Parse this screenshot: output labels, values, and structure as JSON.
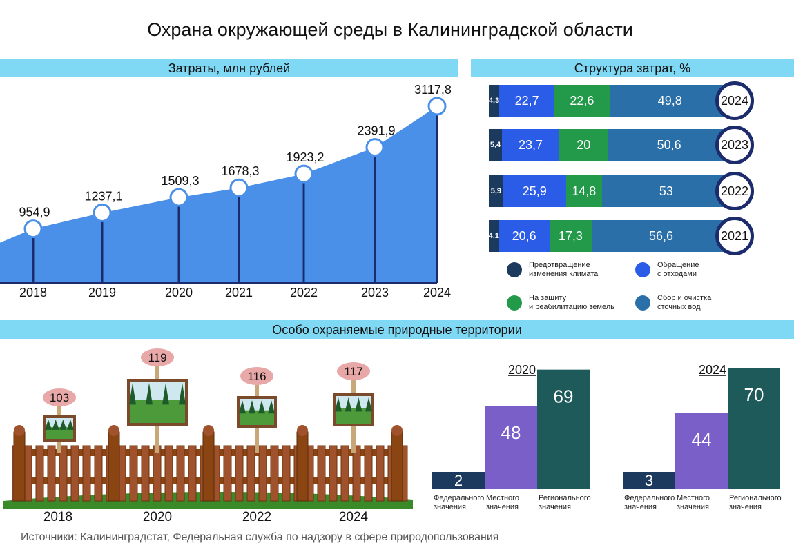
{
  "title": "Охрана окружающей среды в Калининградской области",
  "sections": {
    "costs": "Затраты, млн рублей",
    "structure": "Структура затрат, %",
    "oopt": "Особо охраняемые природные территории"
  },
  "source": "Источники: Калининградстат, Федеральная служба по надзору в сфере природопользования",
  "chart_data": [
    {
      "type": "area",
      "title": "Затраты, млн рублей",
      "x": [
        "2018",
        "2019",
        "2020",
        "2021",
        "2022",
        "2023",
        "2024"
      ],
      "values": [
        954.9,
        1237.1,
        1509.3,
        1678.3,
        1923.2,
        2391.9,
        3117.8
      ],
      "value_labels": [
        "954,9",
        "1237,1",
        "1509,3",
        "1678,3",
        "1923,2",
        "2391,9",
        "3117,8"
      ],
      "color": "#4a90e8"
    },
    {
      "type": "bar",
      "stacked": true,
      "title": "Структура затрат, %",
      "categories": [
        "2024",
        "2023",
        "2022",
        "2021"
      ],
      "series": [
        {
          "name": "Предотвращение изменения климата",
          "color": "#1c3a5e",
          "values": [
            4.3,
            5.4,
            5.9,
            4.1
          ],
          "labels": [
            "4,3",
            "5,4",
            "5,9",
            "4,1"
          ]
        },
        {
          "name": "Обращение с отходами",
          "color": "#2b5ce8",
          "values": [
            22.7,
            23.7,
            25.9,
            20.6
          ],
          "labels": [
            "22,7",
            "23,7",
            "25,9",
            "20,6"
          ]
        },
        {
          "name": "На защиту и реабилитацию земель",
          "color": "#239a4a",
          "values": [
            22.6,
            20,
            14.8,
            17.3
          ],
          "labels": [
            "22,6",
            "20",
            "14,8",
            "17,3"
          ]
        },
        {
          "name": "Сбор и очистка сточных вод",
          "color": "#2a6fa8",
          "values": [
            49.8,
            50.6,
            53,
            56.6
          ],
          "labels": [
            "49,8",
            "50,6",
            "53",
            "56,6"
          ]
        }
      ],
      "legend": [
        {
          "line1": "Предотвращение",
          "line2": "изменения климата",
          "color": "#1c3a5e"
        },
        {
          "line1": "Обращение",
          "line2": "с отходами",
          "color": "#2b5ce8"
        },
        {
          "line1": "На защиту",
          "line2": "и реабилитацию земель",
          "color": "#239a4a"
        },
        {
          "line1": "Сбор и очистка",
          "line2": "сточных вод",
          "color": "#2a6fa8"
        }
      ]
    },
    {
      "type": "bar",
      "title": "Особо охраняемые природные территории",
      "categories": [
        "2018",
        "2020",
        "2022",
        "2024"
      ],
      "values": [
        103,
        119,
        116,
        117
      ]
    },
    {
      "type": "bar",
      "title": "2020",
      "categories": [
        "Федерального значения",
        "Местного значения",
        "Регионального значения"
      ],
      "values": [
        2,
        48,
        69
      ],
      "colors": [
        "#1c3a5e",
        "#7b5fc9",
        "#1f5a5a"
      ]
    },
    {
      "type": "bar",
      "title": "2024",
      "categories": [
        "Федерального значения",
        "Местного значения",
        "Регионального значения"
      ],
      "values": [
        3,
        44,
        70
      ],
      "colors": [
        "#1c3a5e",
        "#7b5fc9",
        "#1f5a5a"
      ]
    }
  ],
  "cat_labels": {
    "fed": [
      "Федерального",
      "значения"
    ],
    "loc": [
      "Местного",
      "значения"
    ],
    "reg": [
      "Регионального",
      "значения"
    ]
  }
}
